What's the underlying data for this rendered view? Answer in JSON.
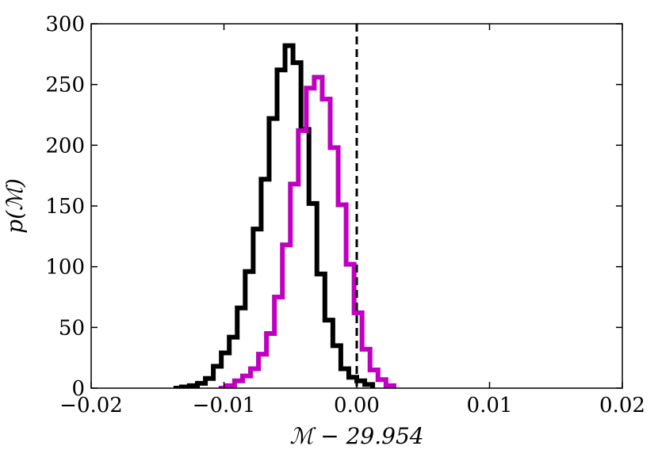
{
  "chart_data": {
    "type": "histogram",
    "title": "",
    "xlabel": "ℳ − 29.954",
    "ylabel": "p(ℳ)",
    "xlim": [
      -0.02,
      0.02
    ],
    "ylim": [
      0,
      300
    ],
    "xticks": [
      -0.02,
      -0.01,
      0.0,
      0.01,
      0.02
    ],
    "xtick_labels": [
      "−0.02",
      "−0.01",
      "0.00",
      "0.01",
      "0.02"
    ],
    "yticks": [
      0,
      50,
      100,
      150,
      200,
      250,
      300
    ],
    "ytick_labels": [
      "0",
      "50",
      "100",
      "150",
      "200",
      "250",
      "300"
    ],
    "grid": false,
    "reference_line": {
      "x": 0.0,
      "style": "dashed",
      "color": "#000000"
    },
    "series": [
      {
        "color": "#000000",
        "step_x": [
          -0.0138,
          -0.0132,
          -0.0126,
          -0.012,
          -0.0114,
          -0.0108,
          -0.0102,
          -0.0096,
          -0.009,
          -0.0084,
          -0.0078,
          -0.0072,
          -0.0066,
          -0.006,
          -0.0054,
          -0.0048,
          -0.0042,
          -0.0036,
          -0.003,
          -0.0024,
          -0.0018,
          -0.0012,
          -0.0006,
          0.0,
          0.0006,
          0.0012
        ],
        "counts": [
          0,
          1,
          2,
          4,
          8,
          18,
          29,
          42,
          66,
          96,
          131,
          172,
          222,
          262,
          282,
          268,
          213,
          152,
          94,
          56,
          35,
          16,
          9,
          6,
          3
        ]
      },
      {
        "color": "#c000c0",
        "step_x": [
          -0.0104,
          -0.0098,
          -0.0092,
          -0.0086,
          -0.008,
          -0.0074,
          -0.0068,
          -0.0062,
          -0.0056,
          -0.005,
          -0.0044,
          -0.0038,
          -0.0032,
          -0.0026,
          -0.002,
          -0.0014,
          -0.0008,
          -0.0002,
          0.0004,
          0.001,
          0.0016,
          0.0022,
          0.0028
        ],
        "counts": [
          0,
          2,
          6,
          10,
          16,
          28,
          45,
          75,
          118,
          168,
          212,
          247,
          256,
          238,
          198,
          151,
          102,
          62,
          32,
          15,
          7,
          2
        ]
      }
    ]
  }
}
